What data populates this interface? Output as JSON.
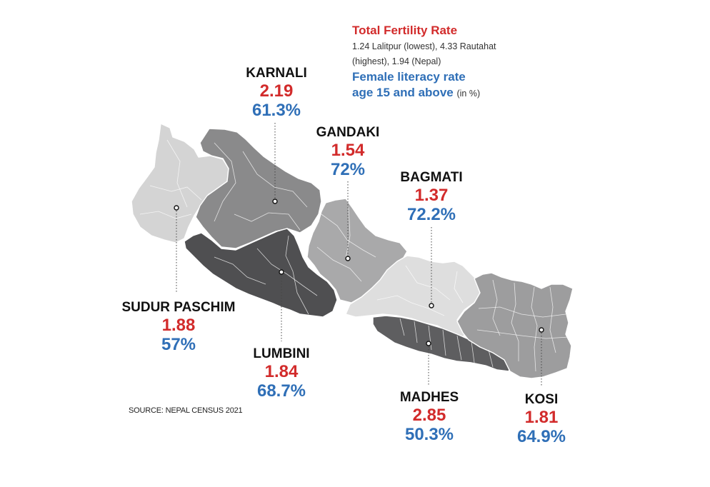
{
  "legend": {
    "tfr_title": "Total Fertility Rate",
    "tfr_note": "1.24 Lalitpur (lowest), 4.33 Rautahat (highest), 1.94 (Nepal)",
    "literacy_title_line1": "Female literacy rate",
    "literacy_title_line2": "age 15 and above",
    "literacy_unit": "(in %)"
  },
  "colors": {
    "tfr": "#d22b2b",
    "literacy": "#2f6fb7",
    "sudurpaschim": "#d4d4d4",
    "karnali": "#8a8a8b",
    "gandaki": "#a9a9aa",
    "lumbini": "#4f4f51",
    "bagmati": "#dedede",
    "madhes": "#5e5e60",
    "kosi": "#9d9d9e"
  },
  "provinces": {
    "karnali": {
      "name": "KARNALI",
      "tfr": "2.19",
      "literacy": "61.3%"
    },
    "gandaki": {
      "name": "GANDAKI",
      "tfr": "1.54",
      "literacy": "72%"
    },
    "bagmati": {
      "name": "BAGMATI",
      "tfr": "1.37",
      "literacy": "72.2%"
    },
    "sudurpaschim": {
      "name": "SUDUR PASCHIM",
      "tfr": "1.88",
      "literacy": "57%"
    },
    "lumbini": {
      "name": "LUMBINI",
      "tfr": "1.84",
      "literacy": "68.7%"
    },
    "madhes": {
      "name": "MADHES",
      "tfr": "2.85",
      "literacy": "50.3%"
    },
    "kosi": {
      "name": "KOSI",
      "tfr": "1.81",
      "literacy": "64.9%"
    }
  },
  "source": "SOURCE: NEPAL CENSUS 2021"
}
